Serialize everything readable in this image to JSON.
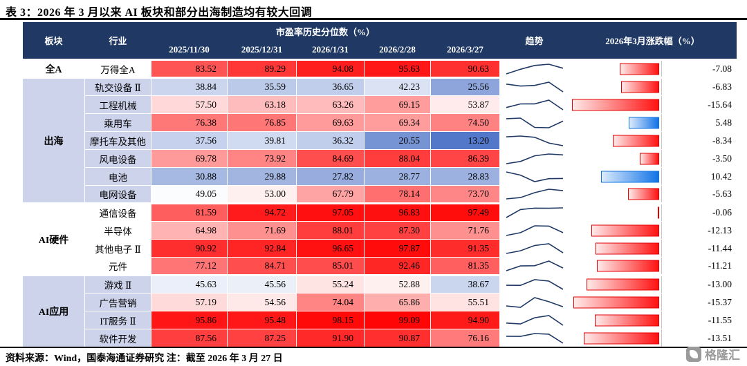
{
  "chart_data": {
    "type": "table",
    "title": "表 3：2026 年 3 月以来 AI 板块和部分出海制造均有较大回调",
    "headers": {
      "sector": "板块",
      "industry": "行业",
      "pe_group": "市盈率历史分位数（%）",
      "dates": [
        "2025/11/30",
        "2025/12/31",
        "2026/1/31",
        "2026/2/28",
        "2026/3/27"
      ],
      "trend": "趋势",
      "change": "2026年3月涨跌幅（%）"
    },
    "value_range": [
      0,
      100
    ],
    "bar_axis_max": 15.64,
    "groups": [
      {
        "sector": "全A",
        "rows": [
          {
            "industry": "万得全A",
            "values": [
              "83.52",
              "89.29",
              "94.08",
              "95.63",
              "90.63"
            ],
            "change": "-7.08"
          }
        ]
      },
      {
        "sector": "出海",
        "rows": [
          {
            "industry": "轨交设备 Ⅱ",
            "values": [
              "38.84",
              "35.59",
              "36.65",
              "42.23",
              "25.56"
            ],
            "change": "-6.83"
          },
          {
            "industry": "工程机械",
            "values": [
              "57.50",
              "63.18",
              "63.26",
              "69.15",
              "53.87"
            ],
            "change": "-15.64"
          },
          {
            "industry": "乘用车",
            "values": [
              "76.38",
              "76.85",
              "69.63",
              "69.34",
              "74.50"
            ],
            "change": "5.48"
          },
          {
            "industry": "摩托车及其他",
            "values": [
              "37.56",
              "39.81",
              "36.32",
              "20.55",
              "13.20"
            ],
            "change": "-8.34"
          },
          {
            "industry": "风电设备",
            "values": [
              "69.78",
              "73.92",
              "84.69",
              "88.04",
              "86.39"
            ],
            "change": "-3.50"
          },
          {
            "industry": "电池",
            "values": [
              "30.88",
              "29.88",
              "27.82",
              "28.77",
              "28.83"
            ],
            "change": "10.42"
          },
          {
            "industry": "电网设备",
            "values": [
              "49.05",
              "53.00",
              "67.79",
              "78.14",
              "73.70"
            ],
            "change": "-5.63"
          }
        ]
      },
      {
        "sector": "AI硬件",
        "rows": [
          {
            "industry": "通信设备",
            "values": [
              "81.59",
              "94.72",
              "97.05",
              "96.83",
              "97.49"
            ],
            "change": "-0.06"
          },
          {
            "industry": "半导体",
            "values": [
              "64.98",
              "71.69",
              "88.01",
              "87.30",
              "71.76"
            ],
            "change": "-12.13"
          },
          {
            "industry": "其他电子 Ⅱ",
            "values": [
              "90.92",
              "92.84",
              "96.65",
              "97.87",
              "91.35"
            ],
            "change": "-11.44"
          },
          {
            "industry": "元件",
            "values": [
              "77.12",
              "84.71",
              "85.01",
              "92.46",
              "81.35"
            ],
            "change": "-11.21"
          }
        ]
      },
      {
        "sector": "AI应用",
        "rows": [
          {
            "industry": "游戏 Ⅱ",
            "values": [
              "45.63",
              "45.56",
              "55.24",
              "52.88",
              "38.67"
            ],
            "change": "-13.00"
          },
          {
            "industry": "广告营销",
            "values": [
              "57.19",
              "54.56",
              "74.04",
              "65.86",
              "55.51"
            ],
            "change": "-15.37"
          },
          {
            "industry": "IT服务 Ⅱ",
            "values": [
              "95.86",
              "95.48",
              "98.15",
              "99.09",
              "94.90"
            ],
            "change": "-11.55"
          },
          {
            "industry": "软件开发",
            "values": [
              "87.56",
              "87.25",
              "91.90",
              "90.87",
              "76.16"
            ],
            "change": "-13.51"
          }
        ]
      }
    ]
  },
  "footer": "资料来源：Wind，国泰海通证券研究  注：截至 2026 年 3 月 27 日",
  "watermark": "格隆汇",
  "colors": {
    "header_bg": "#1F3864",
    "group_alt_bg": "#CCD3EB",
    "group_base_bg": "#FFFFFF",
    "scale_high_red": "#FF0000",
    "scale_mid_white": "#FFFFFF",
    "scale_low_blue": "#1747B5",
    "bar_negative": "#E60000",
    "bar_positive": "#1273E6",
    "sparkline": "#1F3864"
  }
}
